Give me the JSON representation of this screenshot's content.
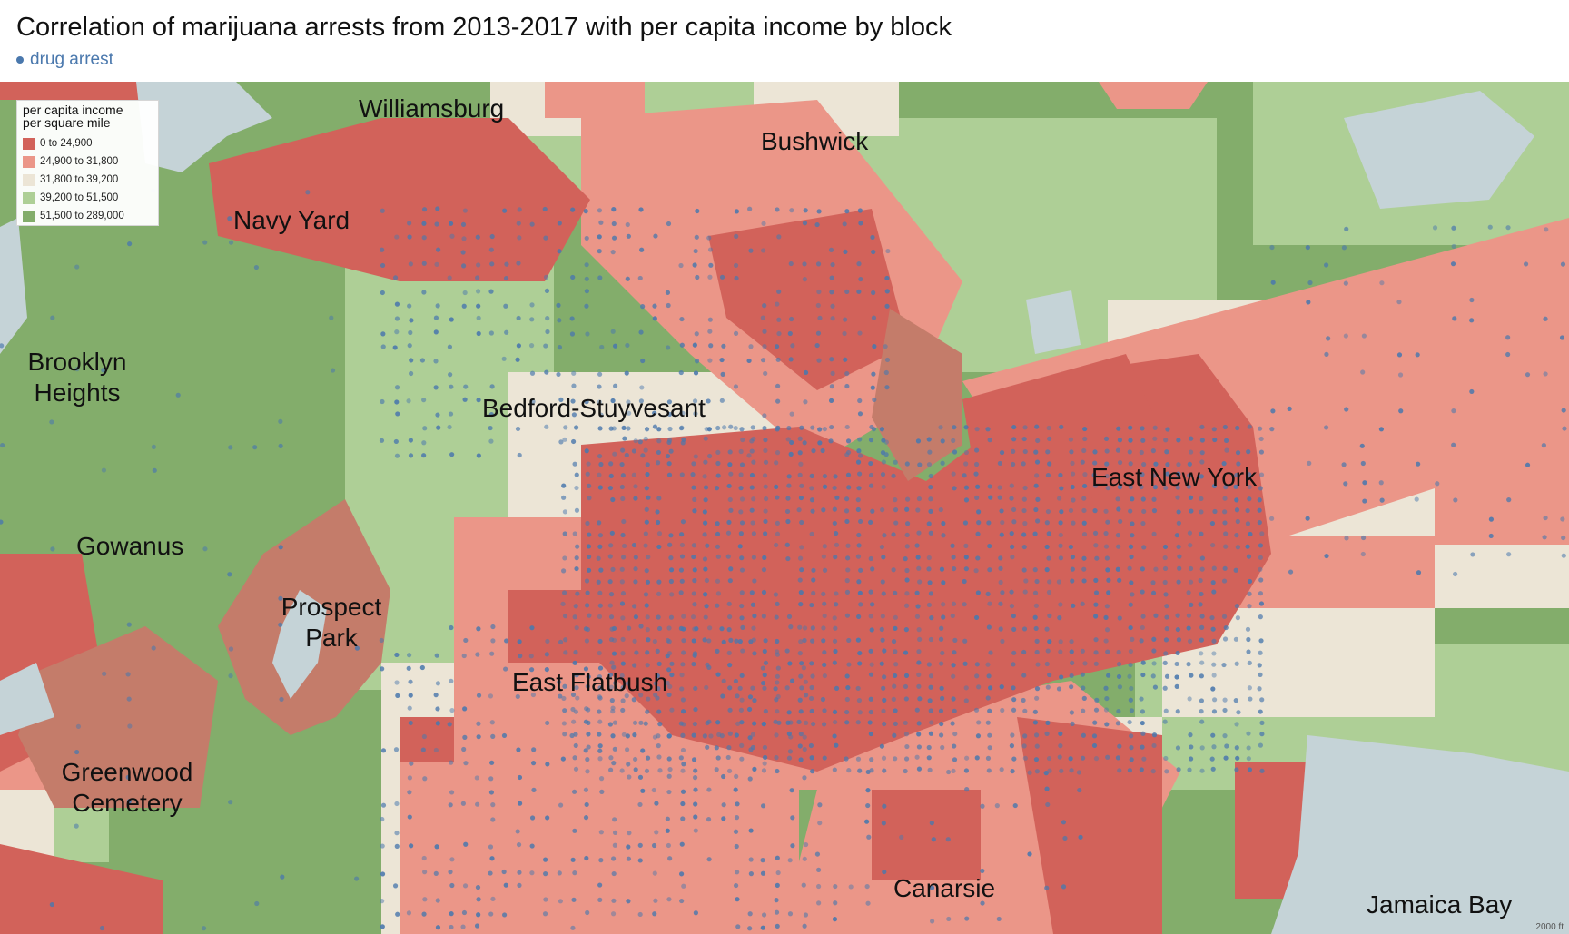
{
  "title": "Correlation of marijuana arrests from 2013-2017 with per capita income by block",
  "subtitle": "drug arrest",
  "colors": {
    "arrest_dot": "#4a78ad",
    "water": "#c5d3d7",
    "park": "#c47c6a"
  },
  "legend": {
    "title_line1": "per capita income",
    "title_line2": "per square mile",
    "items": [
      {
        "label": "0 to 24,900",
        "color": "#d2625a"
      },
      {
        "label": "24,900 to 31,800",
        "color": "#eb9688"
      },
      {
        "label": "31,800 to 39,200",
        "color": "#ece5d6"
      },
      {
        "label": "39,200 to 51,500",
        "color": "#aecf96"
      },
      {
        "label": "51,500 to 289,000",
        "color": "#83ad6b"
      }
    ]
  },
  "places": [
    {
      "name": "Williamsburg"
    },
    {
      "name": "Bushwick"
    },
    {
      "name": "Navy Yard"
    },
    {
      "name": "Brooklyn Heights"
    },
    {
      "name": "Bedford-Stuyvesant"
    },
    {
      "name": "East New York"
    },
    {
      "name": "Gowanus"
    },
    {
      "name": "Prospect Park"
    },
    {
      "name": "East Flatbush"
    },
    {
      "name": "Greenwood Cemetery"
    },
    {
      "name": "Canarsie"
    },
    {
      "name": "Jamaica Bay"
    }
  ],
  "scale_label": "2000 ft"
}
